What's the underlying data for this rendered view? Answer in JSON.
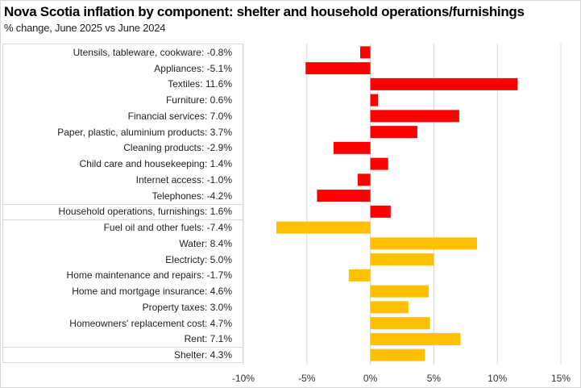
{
  "chart_data": {
    "type": "bar",
    "orientation": "horizontal",
    "title": "Nova Scotia inflation by component: shelter and household operations/furnishings",
    "subtitle": "% change, June 2025 vs June 2024",
    "xlabel": "",
    "ylabel": "",
    "xlim": [
      -10,
      15
    ],
    "xticks": [
      -10,
      -5,
      0,
      5,
      10,
      15
    ],
    "xtick_labels": [
      "-10%",
      "-5%",
      "0%",
      "5%",
      "10%",
      "15%"
    ],
    "grid": "vertical",
    "legend": "none",
    "colors": {
      "household": "#ff0000",
      "shelter": "#ffc000",
      "grid": "#d9d9d9"
    },
    "categories": [
      "Utensils, tableware, cookware: -0.8%",
      "Appliances: -5.1%",
      "Textiles: 11.6%",
      "Furniture: 0.6%",
      "Financial services: 7.0%",
      "Paper, plastic, aluminium products: 3.7%",
      "Cleaning products: -2.9%",
      "Child care and housekeeping: 1.4%",
      "Internet access: -1.0%",
      "Telephones: -4.2%",
      "Household operations, furnishings: 1.6%",
      "Fuel oil and other fuels: -7.4%",
      "Water: 8.4%",
      "Electricty: 5.0%",
      "Home maintenance and repairs: -1.7%",
      "Home and mortgage insurance: 4.6%",
      "Property taxes: 3.0%",
      "Homeowners' replacement cost: 4.7%",
      "Rent: 7.1%",
      "Shelter: 4.3%"
    ],
    "values": [
      -0.8,
      -5.1,
      11.6,
      0.6,
      7.0,
      3.7,
      -2.9,
      1.4,
      -1.0,
      -4.2,
      1.6,
      -7.4,
      8.4,
      5.0,
      -1.7,
      4.6,
      3.0,
      4.7,
      7.1,
      4.3
    ],
    "groups": [
      "household",
      "household",
      "household",
      "household",
      "household",
      "household",
      "household",
      "household",
      "household",
      "household",
      "household",
      "shelter",
      "shelter",
      "shelter",
      "shelter",
      "shelter",
      "shelter",
      "shelter",
      "shelter",
      "shelter"
    ]
  }
}
